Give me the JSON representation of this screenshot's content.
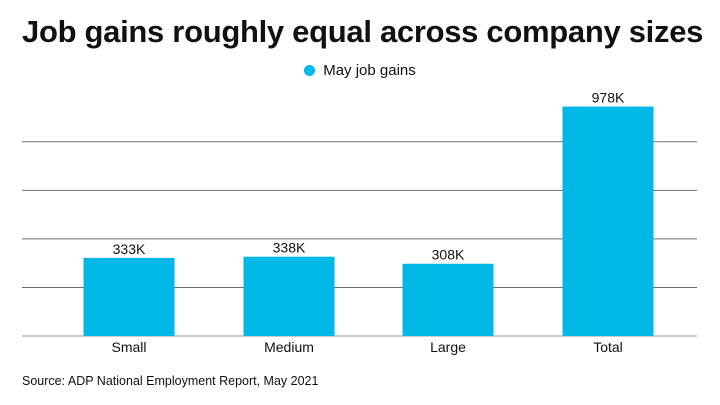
{
  "title": "Job gains roughly equal across company sizes",
  "source": "Source: ADP National Employment Report, May 2021",
  "colors": {
    "bar": "#00b8e6",
    "grid": "#6e6e6e",
    "text": "#111111"
  },
  "chart_data": {
    "type": "bar",
    "title": "Job gains roughly equal across company sizes",
    "categories": [
      "Small",
      "Medium",
      "Large",
      "Total"
    ],
    "series": [
      {
        "name": "May job gains",
        "values": [
          333,
          338,
          308,
          978
        ],
        "labels": [
          "333K",
          "338K",
          "308K",
          "978K"
        ]
      }
    ],
    "xlabel": "",
    "ylabel": "",
    "ylim": [
      0,
      1000
    ],
    "grid": true,
    "legend_position": "top-center"
  }
}
